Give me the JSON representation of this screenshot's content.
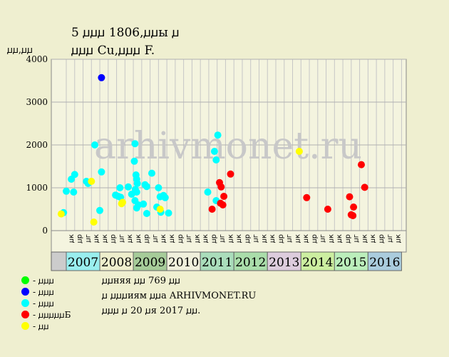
{
  "title_line1": "5 ꙡꙡꙡ 1806,ꙡꙡы ꙡ",
  "title_line2": "ꙡꙡꙡ Cu,ꙡꙡꙡ F.",
  "unit_label": "ꙡꙡ,ꙡꙡ",
  "watermark": "arhivmonet.ru",
  "colors": {
    "background": "#efefd0",
    "plot": "#f4f4df",
    "grid": "#c6c6c6",
    "lt_blue": "#00ffff",
    "blue": "#0000ff",
    "red": "#ff0000",
    "yellow": "#ffff00",
    "green": "#00ff00"
  },
  "legend": [
    {
      "label": "- ꙡꙡꙡ",
      "color": "#00ff00"
    },
    {
      "label": "- ꙡꙡꙡ",
      "color": "#0000ff"
    },
    {
      "label": "- ꙡꙡꙡ",
      "color": "#00ffff"
    },
    {
      "label": "- ꙡꙡꙡꙡꙡБ",
      "color": "#ff0000"
    },
    {
      "label": "- ꙡꙡ",
      "color": "#ffff00"
    }
  ],
  "notes": [
    "ꙡꙡняя ꙡꙡ 769 ꙡꙡ",
    "ꙡ ꙡꙡꙡиям ꙡꙡа ARHIVMONET.RU",
    "ꙡꙡꙡ ꙡ 20 ꙡя 2017 ꙡꙡ."
  ],
  "chart_data": {
    "type": "scatter",
    "ylim": [
      0,
      4000
    ],
    "yticks": [
      0,
      1000,
      2000,
      3000,
      4000
    ],
    "grid": true,
    "quarter_labels": [
      "ꙡк",
      "ꙡр",
      "ꙡг",
      "ꙡк"
    ],
    "years": [
      {
        "label": "2007",
        "color": "#99eeee"
      },
      {
        "label": "2008",
        "color": "#eeeecc"
      },
      {
        "label": "2009",
        "color": "#a6cc99"
      },
      {
        "label": "2010",
        "color": "#f0f0dc"
      },
      {
        "label": "2011",
        "color": "#aaddbb"
      },
      {
        "label": "2012",
        "color": "#aaddaa"
      },
      {
        "label": "2013",
        "color": "#ddccdd"
      },
      {
        "label": "2014",
        "color": "#cceea0"
      },
      {
        "label": "2015",
        "color": "#bbeebb"
      },
      {
        "label": "2016",
        "color": "#aaccdd"
      }
    ],
    "series": [
      {
        "color": "#00ffff",
        "points": [
          [
            2006.92,
            420
          ],
          [
            2007.0,
            920
          ],
          [
            2007.15,
            1200
          ],
          [
            2007.25,
            1310
          ],
          [
            2007.22,
            900
          ],
          [
            2007.6,
            1150
          ],
          [
            2007.65,
            1100
          ],
          [
            2007.85,
            2000
          ],
          [
            2008.0,
            470
          ],
          [
            2008.05,
            1370
          ],
          [
            2008.47,
            830
          ],
          [
            2008.55,
            800
          ],
          [
            2008.6,
            1000
          ],
          [
            2008.62,
            780
          ],
          [
            2008.85,
            1020
          ],
          [
            2008.95,
            850
          ],
          [
            2009.05,
            2030
          ],
          [
            2009.03,
            1620
          ],
          [
            2009.08,
            1300
          ],
          [
            2009.1,
            1200
          ],
          [
            2009.12,
            1100
          ],
          [
            2009.06,
            960
          ],
          [
            2009.1,
            900
          ],
          [
            2009.05,
            700
          ],
          [
            2009.1,
            530
          ],
          [
            2009.15,
            600
          ],
          [
            2009.3,
            620
          ],
          [
            2009.35,
            1070
          ],
          [
            2009.4,
            1030
          ],
          [
            2009.4,
            400
          ],
          [
            2009.55,
            1340
          ],
          [
            2009.7,
            550
          ],
          [
            2009.75,
            1000
          ],
          [
            2009.8,
            790
          ],
          [
            2009.82,
            430
          ],
          [
            2009.9,
            820
          ],
          [
            2009.95,
            770
          ],
          [
            2010.05,
            410
          ],
          [
            2011.22,
            900
          ],
          [
            2011.42,
            1850
          ],
          [
            2011.47,
            1650
          ],
          [
            2011.52,
            2230
          ],
          [
            2011.47,
            700
          ]
        ]
      },
      {
        "color": "#0000ff",
        "points": [
          [
            2008.05,
            3570
          ]
        ]
      },
      {
        "color": "#ff0000",
        "points": [
          [
            2011.35,
            500
          ],
          [
            2011.57,
            1120
          ],
          [
            2011.62,
            1020
          ],
          [
            2011.6,
            640
          ],
          [
            2011.67,
            600
          ],
          [
            2011.7,
            800
          ],
          [
            2011.9,
            1320
          ],
          [
            2014.17,
            770
          ],
          [
            2014.8,
            500
          ],
          [
            2015.45,
            790
          ],
          [
            2015.5,
            370
          ],
          [
            2015.55,
            350
          ],
          [
            2015.57,
            550
          ],
          [
            2015.8,
            1540
          ],
          [
            2015.9,
            1010
          ]
        ]
      },
      {
        "color": "#ffff00",
        "points": [
          [
            2006.85,
            390
          ],
          [
            2007.75,
            1150
          ],
          [
            2007.82,
            200
          ],
          [
            2008.65,
            630
          ],
          [
            2008.68,
            660
          ],
          [
            2009.8,
            500
          ],
          [
            2013.95,
            1850
          ]
        ]
      }
    ]
  }
}
